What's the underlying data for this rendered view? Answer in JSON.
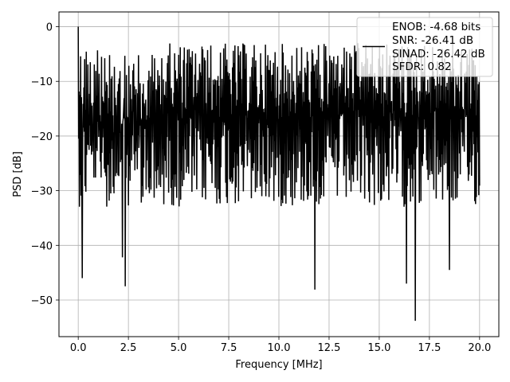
{
  "chart_data": {
    "type": "line",
    "title": "",
    "xlabel": "Frequency [MHz]",
    "ylabel": "PSD [dB]",
    "xlim": [
      -0.96,
      20.96
    ],
    "ylim": [
      -56.7,
      2.7
    ],
    "grid": true,
    "legend_position": "top-right",
    "xticks": [
      0.0,
      2.5,
      5.0,
      7.5,
      10.0,
      12.5,
      15.0,
      17.5,
      20.0
    ],
    "xtick_labels": [
      "0.0",
      "2.5",
      "5.0",
      "7.5",
      "10.0",
      "12.5",
      "15.0",
      "17.5",
      "20.0"
    ],
    "yticks": [
      0,
      -10,
      -20,
      -30,
      -40,
      -50
    ],
    "ytick_labels": [
      "0",
      "−10",
      "−20",
      "−30",
      "−40",
      "−50"
    ],
    "series": [
      {
        "legend_lines": [
          "ENOB: -4.68 bits",
          "SNR: -26.41 dB",
          "SINAD: -26.42 dB",
          "SFDR: 0.82"
        ],
        "color": "#000000",
        "x_range": [
          0,
          20
        ],
        "n_points": 1000,
        "notable_points": [
          {
            "x": 0.0,
            "y": 0.0
          },
          {
            "x": 0.2,
            "y": -46.0
          },
          {
            "x": 2.2,
            "y": -42.2
          },
          {
            "x": 2.35,
            "y": -47.5
          },
          {
            "x": 11.8,
            "y": -48.1
          },
          {
            "x": 16.35,
            "y": -47.0
          },
          {
            "x": 16.8,
            "y": -53.8
          },
          {
            "x": 18.5,
            "y": -44.5
          }
        ],
        "typical_range": [
          -35,
          -3
        ]
      }
    ]
  },
  "colors": {
    "grid": "#b0b0b0",
    "axis": "#000000",
    "line": "#000000",
    "legend_border": "#cccccc"
  }
}
